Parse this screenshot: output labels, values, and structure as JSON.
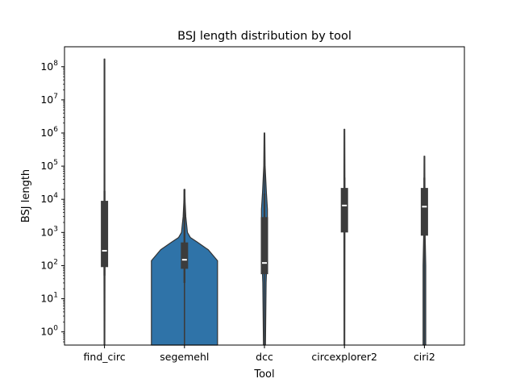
{
  "chart_data": {
    "type": "violin",
    "title": "BSJ length distribution by tool",
    "xlabel": "Tool",
    "ylabel": "BSJ length",
    "yscale": "log",
    "ylim": [
      0.4,
      400000000
    ],
    "categories": [
      "find_circ",
      "segemehl",
      "dcc",
      "circexplorer2",
      "ciri2"
    ],
    "violin_color": "#2f73a8",
    "box_color": "#3c3c3c",
    "median_color": "#ffffff",
    "yticks": [
      {
        "base": "10",
        "exp": "0",
        "value": 1
      },
      {
        "base": "10",
        "exp": "1",
        "value": 10
      },
      {
        "base": "10",
        "exp": "2",
        "value": 100
      },
      {
        "base": "10",
        "exp": "3",
        "value": 1000
      },
      {
        "base": "10",
        "exp": "4",
        "value": 10000
      },
      {
        "base": "10",
        "exp": "5",
        "value": 100000
      },
      {
        "base": "10",
        "exp": "6",
        "value": 1000000
      },
      {
        "base": "10",
        "exp": "7",
        "value": 10000000
      },
      {
        "base": "10",
        "exp": "8",
        "value": 100000000
      }
    ],
    "series": [
      {
        "category": "find_circ",
        "min": 0.4,
        "whisker_low": 50,
        "q1": 90,
        "median": 280,
        "q3": 9000,
        "whisker_high": 18000,
        "max": 170000000,
        "violin_profile": [
          [
            0.4,
            0.01
          ],
          [
            100,
            0.015
          ],
          [
            1000,
            0.015
          ],
          [
            10000,
            0.012
          ],
          [
            170000000,
            0.01
          ]
        ]
      },
      {
        "category": "segemehl",
        "min": 0.4,
        "whisker_low": 30,
        "q1": 80,
        "median": 150,
        "q3": 500,
        "whisker_high": 20000,
        "max": 20000,
        "violin_profile": [
          [
            0.4,
            1.0
          ],
          [
            140,
            1.0
          ],
          [
            300,
            0.72
          ],
          [
            500,
            0.4
          ],
          [
            700,
            0.18
          ],
          [
            1000,
            0.09
          ],
          [
            3000,
            0.04
          ],
          [
            8000,
            0.02
          ],
          [
            20000,
            0.01
          ]
        ]
      },
      {
        "category": "dcc",
        "min": 0.4,
        "whisker_low": 55,
        "q1": 55,
        "median": 120,
        "q3": 2900,
        "whisker_high": 15000,
        "max": 1000000,
        "violin_profile": [
          [
            0.4,
            0.03
          ],
          [
            30,
            0.05
          ],
          [
            200,
            0.08
          ],
          [
            1000,
            0.09
          ],
          [
            5000,
            0.09
          ],
          [
            15000,
            0.06
          ],
          [
            100000,
            0.02
          ],
          [
            1000000,
            0.01
          ]
        ]
      },
      {
        "category": "circexplorer2",
        "min": 0.4,
        "whisker_low": 1000,
        "q1": 1000,
        "median": 6500,
        "q3": 22000,
        "whisker_high": 45000,
        "max": 1300000,
        "violin_profile": [
          [
            0.4,
            0.01
          ],
          [
            1000,
            0.015
          ],
          [
            20000,
            0.015
          ],
          [
            1300000,
            0.01
          ]
        ]
      },
      {
        "category": "ciri2",
        "min": 0.4,
        "whisker_low": 800,
        "q1": 800,
        "median": 6000,
        "q3": 22000,
        "whisker_high": 45000,
        "max": 200000,
        "violin_profile": [
          [
            0.4,
            0.04
          ],
          [
            100,
            0.04
          ],
          [
            1000,
            0.02
          ],
          [
            200000,
            0.01
          ]
        ]
      }
    ]
  }
}
